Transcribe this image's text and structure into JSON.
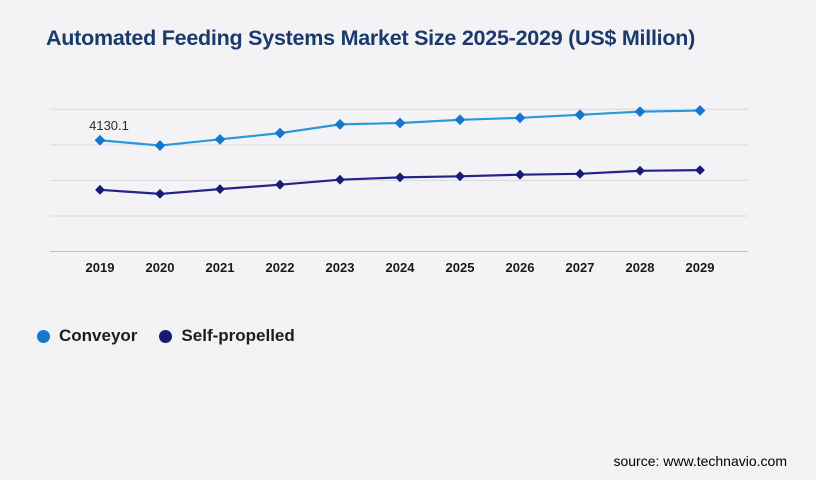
{
  "page": {
    "background_color": "#f3f3f5"
  },
  "header": {
    "title": "Automated Feeding Systems Market Size 2025-2029 (US$ Million)",
    "title_color": "#1b3a6b"
  },
  "chart_data": {
    "type": "line",
    "title": "Automated Feeding Systems Market Size 2025-2029 (US$ Million)",
    "unit": "US$ Million",
    "categories": [
      "2019",
      "2020",
      "2021",
      "2022",
      "2023",
      "2024",
      "2025",
      "2026",
      "2027",
      "2028",
      "2029"
    ],
    "series": [
      {
        "name": "Conveyor",
        "line_color": "#2b97dc",
        "marker_color": "#1478cf",
        "marker": "diamond",
        "values": [
          4130.1,
          3980,
          4155,
          4330,
          4575,
          4615,
          4705,
          4760,
          4845,
          4935,
          4965
        ]
      },
      {
        "name": "Self-propelled",
        "line_color": "#23238c",
        "marker_color": "#1a1a72",
        "marker": "diamond",
        "values": [
          2735,
          2620,
          2755,
          2880,
          3020,
          3085,
          3115,
          3160,
          3185,
          3270,
          3290
        ]
      }
    ],
    "data_labels": [
      {
        "series": "Conveyor",
        "category": "2019",
        "text": "4130.1"
      }
    ],
    "ylim": [
      1000,
      5000
    ],
    "gridline_values": [
      5000,
      4000,
      3000,
      2000,
      1000
    ],
    "grid": "horizontal",
    "y_axis_labels_visible": false,
    "legend_position": "bottom-left",
    "xlabel": "",
    "ylabel": ""
  },
  "legend": {
    "items": [
      {
        "label": "Conveyor",
        "color": "#1478cf"
      },
      {
        "label": "Self-propelled",
        "color": "#1a1a72"
      }
    ]
  },
  "footer": {
    "source": "source: www.technavio.com"
  }
}
